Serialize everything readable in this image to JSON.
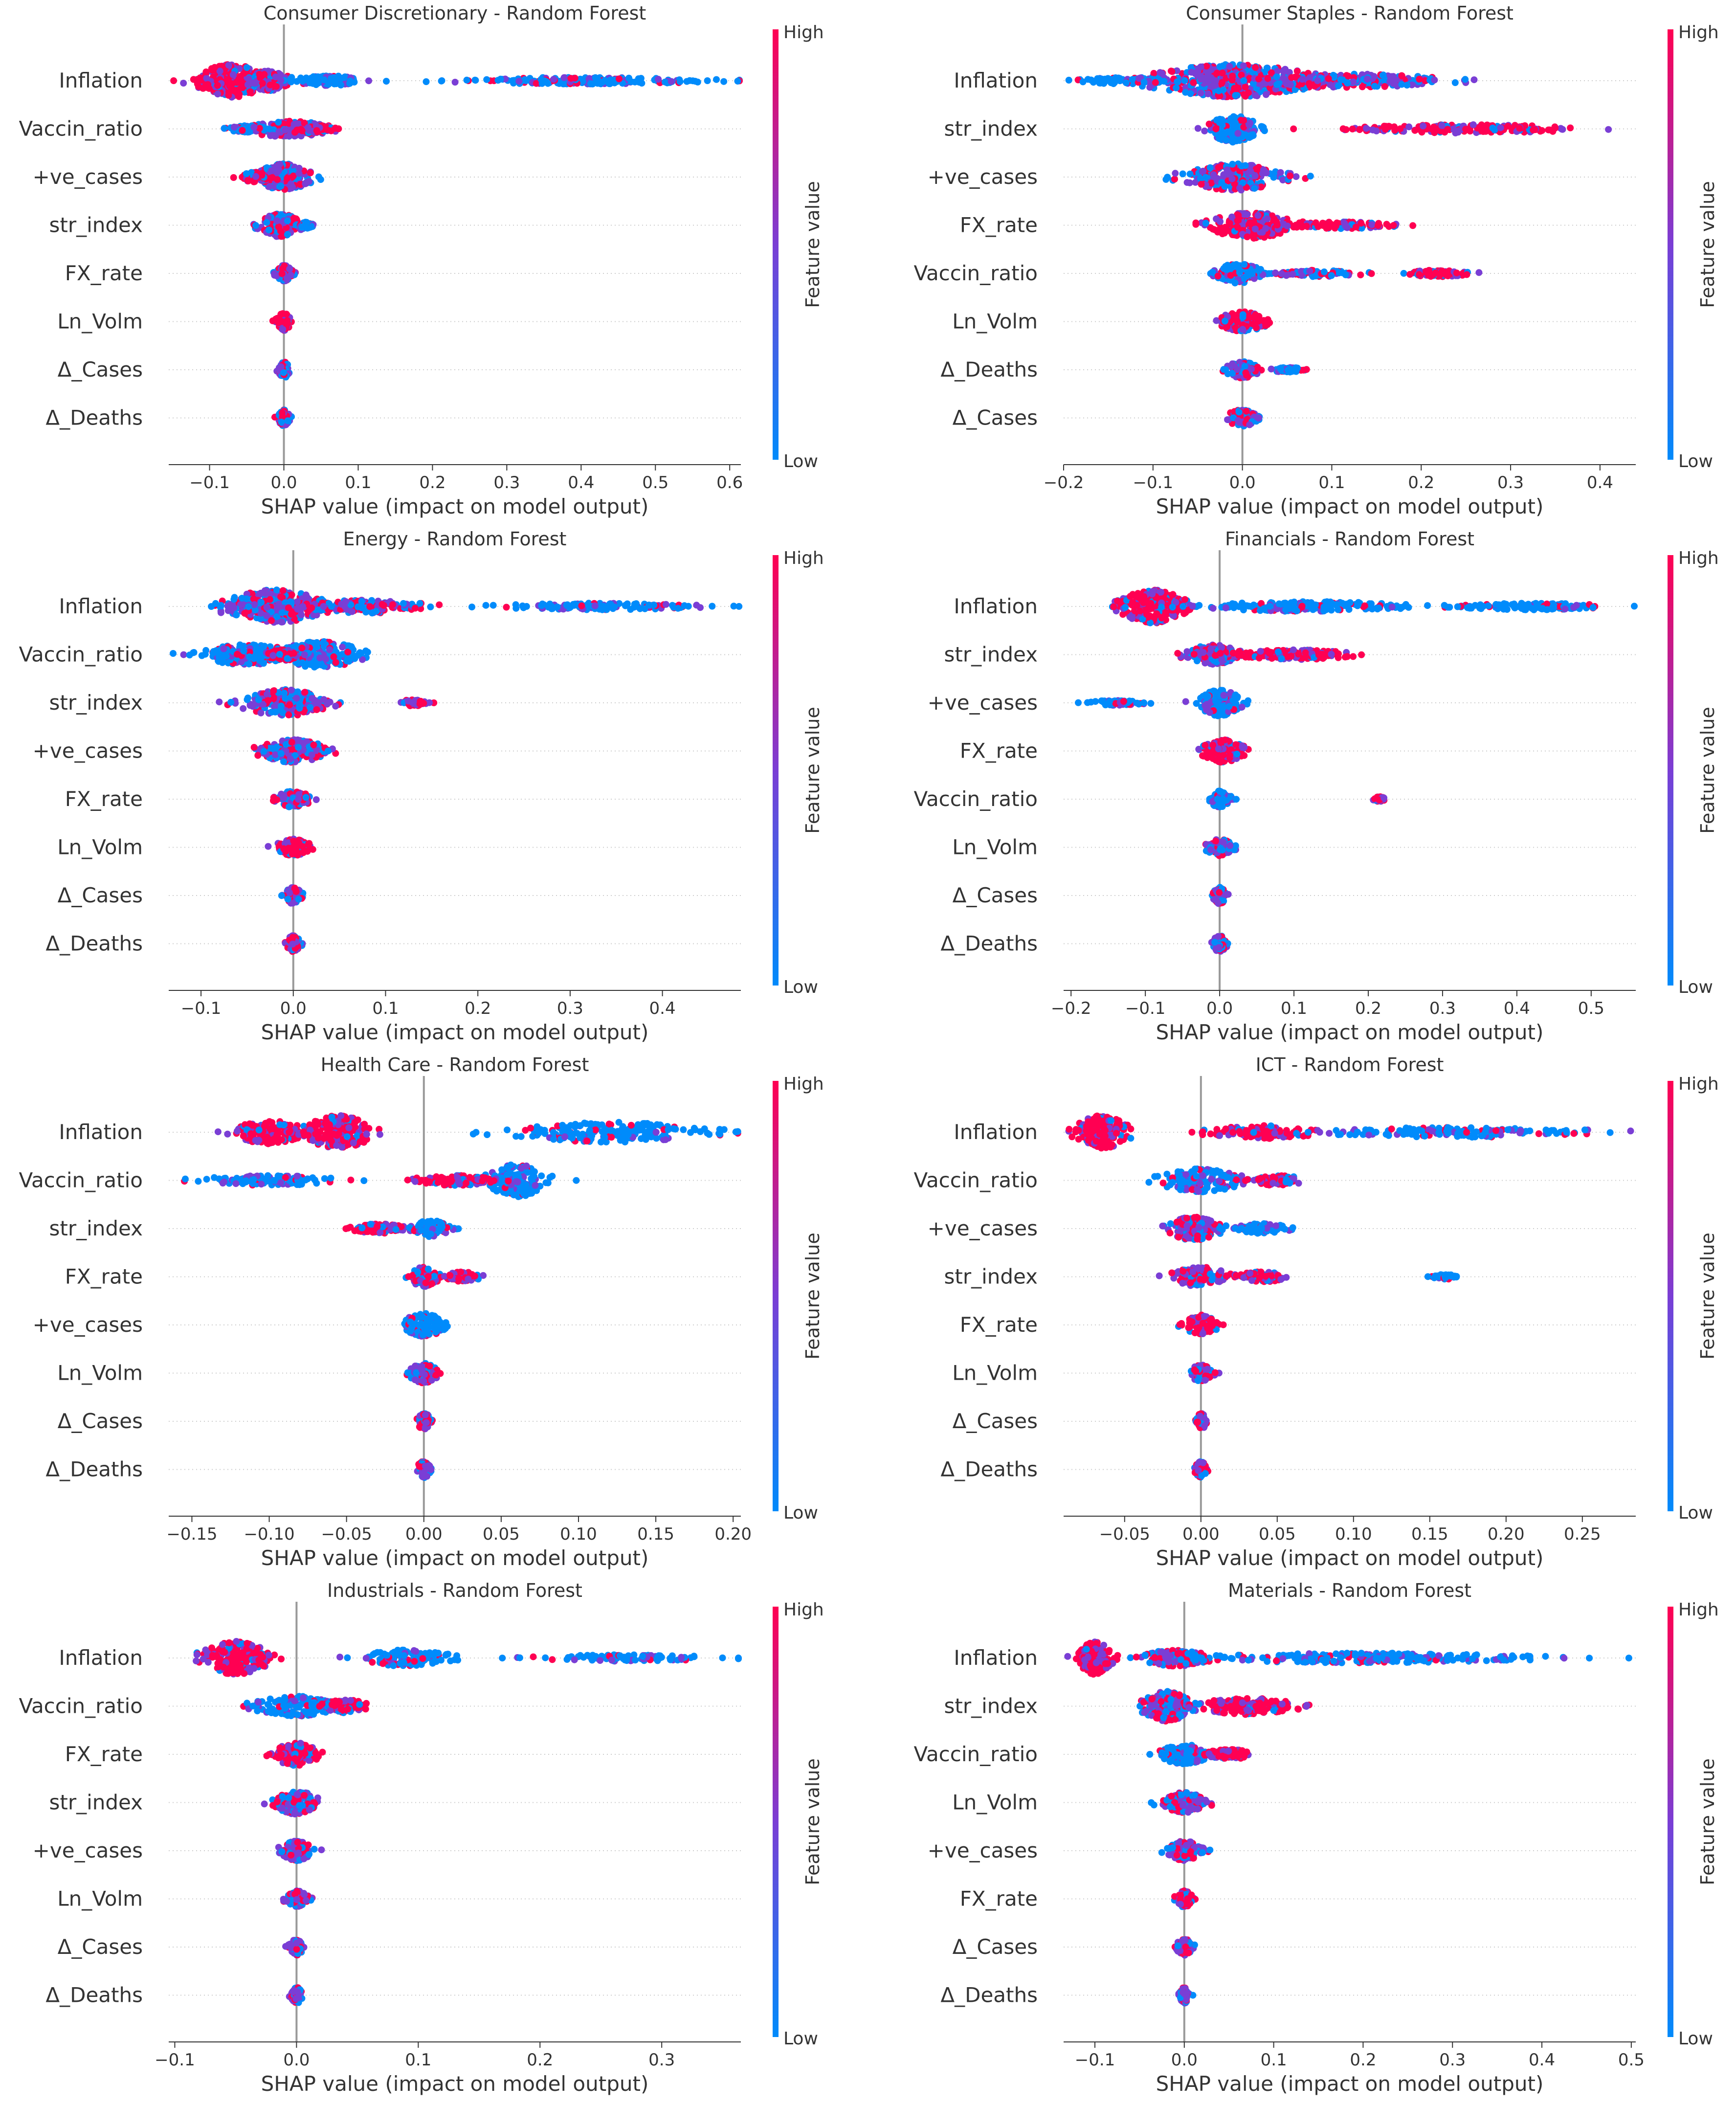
{
  "figure": {
    "colorbar_high": "High",
    "colorbar_low": "Low",
    "colorbar_title": "Feature value",
    "xlabel": "SHAP value (impact on model output)",
    "colors": {
      "low": "#008bfb",
      "mid": "#7a3ed5",
      "high": "#ff0052",
      "axis": "#333333",
      "center": "#999999",
      "grid": "#cccccc"
    }
  },
  "chart_data": [
    {
      "type": "scatter",
      "subtype": "shap-beeswarm",
      "title": "Consumer Discretionary - Random Forest",
      "xlabel": "SHAP value (impact on model output)",
      "xlim": [
        -0.155,
        0.615
      ],
      "xticks": [
        -0.1,
        0.0,
        0.1,
        0.2,
        0.3,
        0.4,
        0.5,
        0.6
      ],
      "xtick_labels": [
        "−0.1",
        "0.0",
        "0.1",
        "0.2",
        "0.3",
        "0.4",
        "0.5",
        "0.6"
      ],
      "features": [
        "Inflation",
        "Vaccin_ratio",
        "+ve_cases",
        "str_index",
        "FX_rate",
        "Ln_Volm",
        "Δ_Cases",
        "Δ_Deaths"
      ],
      "clusters": [
        [
          {
            "c": -0.07,
            "w": 0.05,
            "h": 1.0,
            "m": "high"
          },
          {
            "c": -0.02,
            "w": 0.03,
            "h": 0.6,
            "m": "mixed"
          },
          {
            "c": 0.06,
            "w": 0.05,
            "h": 0.3,
            "m": "low"
          },
          {
            "c": 0.4,
            "w": 0.2,
            "h": 0.2,
            "m": "low"
          }
        ],
        [
          {
            "c": 0.005,
            "w": 0.06,
            "h": 0.5,
            "m": "mixed"
          },
          {
            "c": -0.05,
            "w": 0.03,
            "h": 0.2,
            "m": "low"
          },
          {
            "c": 0.05,
            "w": 0.02,
            "h": 0.2,
            "m": "high"
          }
        ],
        [
          {
            "c": 0.0,
            "w": 0.04,
            "h": 0.8,
            "m": "mixed"
          },
          {
            "c": -0.04,
            "w": 0.02,
            "h": 0.3,
            "m": "high"
          }
        ],
        [
          {
            "c": -0.005,
            "w": 0.03,
            "h": 0.7,
            "m": "mixed"
          },
          {
            "c": 0.03,
            "w": 0.01,
            "h": 0.2,
            "m": "low"
          }
        ],
        [
          {
            "c": 0.0,
            "w": 0.012,
            "h": 0.5,
            "m": "mixed"
          }
        ],
        [
          {
            "c": 0.0,
            "w": 0.01,
            "h": 0.55,
            "m": "high"
          }
        ],
        [
          {
            "c": 0.0,
            "w": 0.008,
            "h": 0.5,
            "m": "mixed"
          }
        ],
        [
          {
            "c": 0.0,
            "w": 0.008,
            "h": 0.5,
            "m": "mixed"
          }
        ]
      ]
    },
    {
      "type": "scatter",
      "subtype": "shap-beeswarm",
      "title": "Consumer Staples - Random Forest",
      "xlabel": "SHAP value (impact on model output)",
      "xlim": [
        -0.2,
        0.44
      ],
      "xticks": [
        -0.2,
        -0.1,
        0.0,
        0.1,
        0.2,
        0.3,
        0.4
      ],
      "xtick_labels": [
        "−0.2",
        "−0.1",
        "0.0",
        "0.1",
        "0.2",
        "0.3",
        "0.4"
      ],
      "features": [
        "Inflation",
        "str_index",
        "+ve_cases",
        "FX_rate",
        "Vaccin_ratio",
        "Ln_Volm",
        "Δ_Deaths",
        "Δ_Cases"
      ],
      "clusters": [
        [
          {
            "c": -0.01,
            "w": 0.1,
            "h": 1.0,
            "m": "mixed"
          },
          {
            "c": 0.12,
            "w": 0.12,
            "h": 0.4,
            "m": "mixed"
          },
          {
            "c": -0.13,
            "w": 0.06,
            "h": 0.2,
            "m": "low"
          }
        ],
        [
          {
            "c": -0.01,
            "w": 0.03,
            "h": 0.8,
            "m": "low"
          },
          {
            "c": 0.25,
            "w": 0.15,
            "h": 0.25,
            "m": "high"
          }
        ],
        [
          {
            "c": -0.01,
            "w": 0.06,
            "h": 0.8,
            "m": "mixed"
          }
        ],
        [
          {
            "c": 0.01,
            "w": 0.05,
            "h": 0.8,
            "m": "high"
          },
          {
            "c": 0.11,
            "w": 0.07,
            "h": 0.2,
            "m": "high"
          }
        ],
        [
          {
            "c": -0.005,
            "w": 0.03,
            "h": 0.6,
            "m": "low"
          },
          {
            "c": 0.08,
            "w": 0.06,
            "h": 0.2,
            "m": "mixed"
          },
          {
            "c": 0.22,
            "w": 0.04,
            "h": 0.2,
            "m": "high"
          }
        ],
        [
          {
            "c": 0.0,
            "w": 0.03,
            "h": 0.6,
            "m": "high"
          }
        ],
        [
          {
            "c": 0.0,
            "w": 0.02,
            "h": 0.5,
            "m": "mixed"
          },
          {
            "c": 0.05,
            "w": 0.02,
            "h": 0.15,
            "m": "low"
          }
        ],
        [
          {
            "c": 0.0,
            "w": 0.02,
            "h": 0.5,
            "m": "mixed"
          }
        ]
      ]
    },
    {
      "type": "scatter",
      "subtype": "shap-beeswarm",
      "title": "Energy - Random Forest",
      "xlabel": "SHAP value (impact on model output)",
      "xlim": [
        -0.135,
        0.485
      ],
      "xticks": [
        -0.1,
        0.0,
        0.1,
        0.2,
        0.3,
        0.4
      ],
      "xtick_labels": [
        "−0.1",
        "0.0",
        "0.1",
        "0.2",
        "0.3",
        "0.4"
      ],
      "features": [
        "Inflation",
        "Vaccin_ratio",
        "str_index",
        "+ve_cases",
        "FX_rate",
        "Ln_Volm",
        "Δ_Cases",
        "Δ_Deaths"
      ],
      "clusters": [
        [
          {
            "c": -0.02,
            "w": 0.06,
            "h": 1.0,
            "m": "mixed"
          },
          {
            "c": 0.08,
            "w": 0.07,
            "h": 0.4,
            "m": "mixed"
          },
          {
            "c": 0.33,
            "w": 0.12,
            "h": 0.2,
            "m": "low"
          }
        ],
        [
          {
            "c": -0.05,
            "w": 0.06,
            "h": 0.6,
            "m": "low"
          },
          {
            "c": 0.03,
            "w": 0.05,
            "h": 0.8,
            "m": "low"
          },
          {
            "c": -0.01,
            "w": 0.02,
            "h": 0.3,
            "m": "high"
          }
        ],
        [
          {
            "c": -0.01,
            "w": 0.05,
            "h": 0.8,
            "m": "mixed"
          },
          {
            "c": 0.13,
            "w": 0.015,
            "h": 0.2,
            "m": "high"
          }
        ],
        [
          {
            "c": 0.0,
            "w": 0.04,
            "h": 0.7,
            "m": "mixed"
          }
        ],
        [
          {
            "c": 0.0,
            "w": 0.02,
            "h": 0.5,
            "m": "mixed"
          }
        ],
        [
          {
            "c": 0.0,
            "w": 0.02,
            "h": 0.5,
            "m": "high"
          }
        ],
        [
          {
            "c": 0.0,
            "w": 0.01,
            "h": 0.5,
            "m": "mixed"
          }
        ],
        [
          {
            "c": 0.0,
            "w": 0.008,
            "h": 0.5,
            "m": "mixed"
          }
        ]
      ]
    },
    {
      "type": "scatter",
      "subtype": "shap-beeswarm",
      "title": "Financials - Random Forest",
      "xlabel": "SHAP value (impact on model output)",
      "xlim": [
        -0.21,
        0.56
      ],
      "xticks": [
        -0.2,
        -0.1,
        0.0,
        0.1,
        0.2,
        0.3,
        0.4,
        0.5
      ],
      "xtick_labels": [
        "−0.2",
        "−0.1",
        "0.0",
        "0.1",
        "0.2",
        "0.3",
        "0.4",
        "0.5"
      ],
      "features": [
        "Inflation",
        "str_index",
        "+ve_cases",
        "FX_rate",
        "Vaccin_ratio",
        "Ln_Volm",
        "Δ_Cases",
        "Δ_Deaths"
      ],
      "clusters": [
        [
          {
            "c": -0.09,
            "w": 0.05,
            "h": 1.0,
            "m": "high"
          },
          {
            "c": 0.12,
            "w": 0.15,
            "h": 0.3,
            "m": "low"
          },
          {
            "c": 0.42,
            "w": 0.12,
            "h": 0.2,
            "m": "low"
          }
        ],
        [
          {
            "c": -0.01,
            "w": 0.04,
            "h": 0.6,
            "m": "mixed"
          },
          {
            "c": 0.1,
            "w": 0.09,
            "h": 0.3,
            "m": "high"
          }
        ],
        [
          {
            "c": 0.0,
            "w": 0.03,
            "h": 0.8,
            "m": "low"
          },
          {
            "c": -0.14,
            "w": 0.04,
            "h": 0.15,
            "m": "low"
          }
        ],
        [
          {
            "c": 0.005,
            "w": 0.03,
            "h": 0.7,
            "m": "high"
          }
        ],
        [
          {
            "c": 0.0,
            "w": 0.015,
            "h": 0.5,
            "m": "low"
          },
          {
            "c": 0.215,
            "w": 0.008,
            "h": 0.15,
            "m": "high"
          }
        ],
        [
          {
            "c": 0.0,
            "w": 0.02,
            "h": 0.5,
            "m": "mixed"
          }
        ],
        [
          {
            "c": 0.0,
            "w": 0.01,
            "h": 0.5,
            "m": "mixed"
          }
        ],
        [
          {
            "c": 0.0,
            "w": 0.01,
            "h": 0.5,
            "m": "mixed"
          }
        ]
      ]
    },
    {
      "type": "scatter",
      "subtype": "shap-beeswarm",
      "title": "Health Care - Random Forest",
      "xlabel": "SHAP value (impact on model output)",
      "xlim": [
        -0.165,
        0.205
      ],
      "xticks": [
        -0.15,
        -0.1,
        -0.05,
        0.0,
        0.05,
        0.1,
        0.15,
        0.2
      ],
      "xtick_labels": [
        "−0.15",
        "−0.10",
        "−0.05",
        "0.00",
        "0.05",
        "0.10",
        "0.15",
        "0.20"
      ],
      "features": [
        "Inflation",
        "Vaccin_ratio",
        "str_index",
        "FX_rate",
        "+ve_cases",
        "Ln_Volm",
        "Δ_Cases",
        "Δ_Deaths"
      ],
      "clusters": [
        [
          {
            "c": -0.1,
            "w": 0.025,
            "h": 0.7,
            "m": "high"
          },
          {
            "c": -0.055,
            "w": 0.025,
            "h": 1.0,
            "m": "high"
          },
          {
            "c": 0.12,
            "w": 0.07,
            "h": 0.6,
            "m": "low"
          }
        ],
        [
          {
            "c": -0.1,
            "w": 0.05,
            "h": 0.3,
            "m": "low"
          },
          {
            "c": 0.06,
            "w": 0.02,
            "h": 1.0,
            "m": "low"
          },
          {
            "c": 0.02,
            "w": 0.03,
            "h": 0.3,
            "m": "high"
          }
        ],
        [
          {
            "c": -0.03,
            "w": 0.02,
            "h": 0.3,
            "m": "high"
          },
          {
            "c": 0.005,
            "w": 0.015,
            "h": 0.5,
            "m": "low"
          }
        ],
        [
          {
            "c": 0.0,
            "w": 0.01,
            "h": 0.6,
            "m": "mixed"
          },
          {
            "c": 0.025,
            "w": 0.012,
            "h": 0.3,
            "m": "high"
          }
        ],
        [
          {
            "c": 0.0,
            "w": 0.015,
            "h": 0.7,
            "m": "low"
          }
        ],
        [
          {
            "c": 0.0,
            "w": 0.01,
            "h": 0.6,
            "m": "mixed"
          }
        ],
        [
          {
            "c": 0.0,
            "w": 0.005,
            "h": 0.5,
            "m": "mixed"
          }
        ],
        [
          {
            "c": 0.0,
            "w": 0.005,
            "h": 0.5,
            "m": "mixed"
          }
        ]
      ]
    },
    {
      "type": "scatter",
      "subtype": "shap-beeswarm",
      "title": "ICT - Random Forest",
      "xlabel": "SHAP value (impact on model output)",
      "xlim": [
        -0.09,
        0.285
      ],
      "xticks": [
        -0.05,
        0.0,
        0.05,
        0.1,
        0.15,
        0.2,
        0.25
      ],
      "xtick_labels": [
        "−0.05",
        "0.00",
        "0.05",
        "0.10",
        "0.15",
        "0.20",
        "0.25"
      ],
      "features": [
        "Inflation",
        "Vaccin_ratio",
        "+ve_cases",
        "str_index",
        "FX_rate",
        "Ln_Volm",
        "Δ_Cases",
        "Δ_Deaths"
      ],
      "clusters": [
        [
          {
            "c": -0.065,
            "w": 0.02,
            "h": 1.0,
            "m": "high"
          },
          {
            "c": 0.04,
            "w": 0.04,
            "h": 0.4,
            "m": "high"
          },
          {
            "c": 0.17,
            "w": 0.1,
            "h": 0.3,
            "m": "low"
          }
        ],
        [
          {
            "c": 0.0,
            "w": 0.03,
            "h": 0.7,
            "m": "low"
          },
          {
            "c": 0.05,
            "w": 0.02,
            "h": 0.3,
            "m": "high"
          }
        ],
        [
          {
            "c": -0.005,
            "w": 0.02,
            "h": 0.7,
            "m": "mixed"
          },
          {
            "c": 0.04,
            "w": 0.02,
            "h": 0.3,
            "m": "low"
          }
        ],
        [
          {
            "c": 0.0,
            "w": 0.02,
            "h": 0.6,
            "m": "mixed"
          },
          {
            "c": 0.04,
            "w": 0.02,
            "h": 0.3,
            "m": "high"
          },
          {
            "c": 0.16,
            "w": 0.008,
            "h": 0.15,
            "m": "low"
          }
        ],
        [
          {
            "c": 0.0,
            "w": 0.012,
            "h": 0.6,
            "m": "high"
          }
        ],
        [
          {
            "c": 0.0,
            "w": 0.008,
            "h": 0.5,
            "m": "mixed"
          }
        ],
        [
          {
            "c": 0.0,
            "w": 0.004,
            "h": 0.5,
            "m": "mixed"
          }
        ],
        [
          {
            "c": 0.0,
            "w": 0.004,
            "h": 0.5,
            "m": "mixed"
          }
        ]
      ]
    },
    {
      "type": "scatter",
      "subtype": "shap-beeswarm",
      "title": "Industrials - Random Forest",
      "xlabel": "SHAP value (impact on model output)",
      "xlim": [
        -0.105,
        0.365
      ],
      "xticks": [
        -0.1,
        0.0,
        0.1,
        0.2,
        0.3
      ],
      "xtick_labels": [
        "−0.1",
        "0.0",
        "0.1",
        "0.2",
        "0.3"
      ],
      "features": [
        "Inflation",
        "Vaccin_ratio",
        "FX_rate",
        "str_index",
        "+ve_cases",
        "Ln_Volm",
        "Δ_Cases",
        "Δ_Deaths"
      ],
      "clusters": [
        [
          {
            "c": -0.05,
            "w": 0.03,
            "h": 1.0,
            "m": "high"
          },
          {
            "c": 0.09,
            "w": 0.04,
            "h": 0.5,
            "m": "low"
          },
          {
            "c": 0.27,
            "w": 0.08,
            "h": 0.2,
            "m": "low"
          }
        ],
        [
          {
            "c": 0.0,
            "w": 0.04,
            "h": 0.6,
            "m": "low"
          },
          {
            "c": 0.04,
            "w": 0.02,
            "h": 0.4,
            "m": "high"
          }
        ],
        [
          {
            "c": 0.0,
            "w": 0.02,
            "h": 0.7,
            "m": "high"
          }
        ],
        [
          {
            "c": 0.0,
            "w": 0.02,
            "h": 0.7,
            "m": "mixed"
          }
        ],
        [
          {
            "c": 0.0,
            "w": 0.015,
            "h": 0.6,
            "m": "mixed"
          }
        ],
        [
          {
            "c": 0.0,
            "w": 0.01,
            "h": 0.5,
            "m": "mixed"
          }
        ],
        [
          {
            "c": 0.0,
            "w": 0.006,
            "h": 0.5,
            "m": "mixed"
          }
        ],
        [
          {
            "c": 0.0,
            "w": 0.005,
            "h": 0.5,
            "m": "mixed"
          }
        ]
      ]
    },
    {
      "type": "scatter",
      "subtype": "shap-beeswarm",
      "title": "Materials - Random Forest",
      "xlabel": "SHAP value (impact on model output)",
      "xlim": [
        -0.135,
        0.505
      ],
      "xticks": [
        -0.1,
        0.0,
        0.1,
        0.2,
        0.3,
        0.4,
        0.5
      ],
      "xtick_labels": [
        "−0.1",
        "0.0",
        "0.1",
        "0.2",
        "0.3",
        "0.4",
        "0.5"
      ],
      "features": [
        "Inflation",
        "str_index",
        "Vaccin_ratio",
        "Ln_Volm",
        "+ve_cases",
        "FX_rate",
        "Δ_Cases",
        "Δ_Deaths"
      ],
      "clusters": [
        [
          {
            "c": -0.1,
            "w": 0.02,
            "h": 1.0,
            "m": "high"
          },
          {
            "c": -0.01,
            "w": 0.04,
            "h": 0.5,
            "m": "mixed"
          },
          {
            "c": 0.2,
            "w": 0.2,
            "h": 0.3,
            "m": "low"
          }
        ],
        [
          {
            "c": -0.02,
            "w": 0.03,
            "h": 0.9,
            "m": "mixed"
          },
          {
            "c": 0.07,
            "w": 0.06,
            "h": 0.5,
            "m": "high"
          }
        ],
        [
          {
            "c": 0.0,
            "w": 0.03,
            "h": 0.6,
            "m": "low"
          },
          {
            "c": 0.05,
            "w": 0.03,
            "h": 0.3,
            "m": "high"
          }
        ],
        [
          {
            "c": 0.0,
            "w": 0.03,
            "h": 0.6,
            "m": "mixed"
          }
        ],
        [
          {
            "c": 0.0,
            "w": 0.02,
            "h": 0.6,
            "m": "mixed"
          }
        ],
        [
          {
            "c": 0.0,
            "w": 0.01,
            "h": 0.5,
            "m": "high"
          }
        ],
        [
          {
            "c": 0.0,
            "w": 0.01,
            "h": 0.5,
            "m": "mixed"
          }
        ],
        [
          {
            "c": 0.0,
            "w": 0.005,
            "h": 0.5,
            "m": "mixed"
          }
        ]
      ]
    }
  ]
}
